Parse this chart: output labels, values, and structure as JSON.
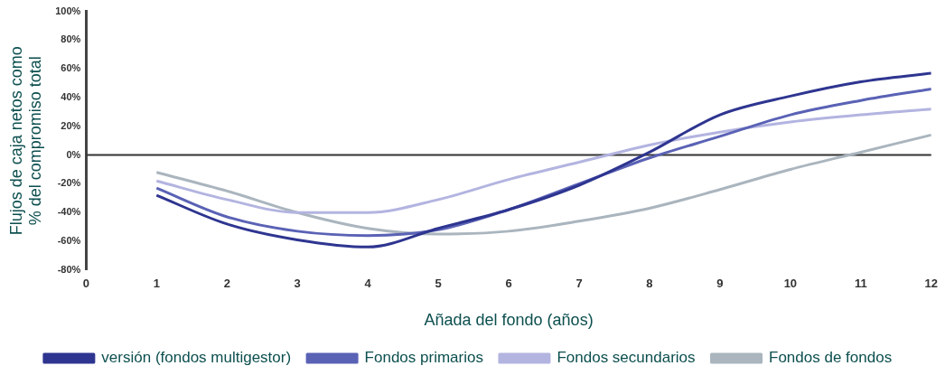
{
  "chart_data": {
    "type": "line",
    "xlabel": "Añada del fondo (años)",
    "ylabel": "Flujos de caja netos como\n% del compromiso total",
    "x": [
      1,
      2,
      3,
      4,
      5,
      6,
      7,
      8,
      9,
      10,
      11,
      12
    ],
    "series": [
      {
        "name": "versión (fondos multigestor)",
        "color": "#2e3590",
        "values": [
          -28,
          -48,
          -59,
          -64,
          -51,
          -38,
          -21,
          2,
          28,
          41,
          51,
          57
        ]
      },
      {
        "name": "Fondos primarios",
        "color": "#5a62b5",
        "values": [
          -23,
          -43,
          -53,
          -56,
          -52,
          -38,
          -20,
          -2,
          13,
          28,
          38,
          46
        ]
      },
      {
        "name": "Fondos secundarios",
        "color": "#b3b4e0",
        "values": [
          -18,
          -31,
          -40,
          -40,
          -31,
          -17,
          -5,
          7,
          16,
          23,
          28,
          32
        ]
      },
      {
        "name": "Fondos de fondos",
        "color": "#aab5be",
        "values": [
          -12,
          -25,
          -40,
          -51,
          -55,
          -53,
          -46,
          -37,
          -24,
          -10,
          2,
          14
        ]
      }
    ],
    "xlim": [
      0,
      12
    ],
    "xticks": [
      0,
      1,
      2,
      3,
      4,
      5,
      6,
      7,
      8,
      9,
      10,
      11,
      12
    ],
    "ylim": [
      -80,
      100
    ],
    "yticks": [
      {
        "value": -80,
        "label": "-80%"
      },
      {
        "value": -60,
        "label": "-60%"
      },
      {
        "value": -40,
        "label": "-40%"
      },
      {
        "value": -20,
        "label": "-20%"
      },
      {
        "value": 0,
        "label": "0%"
      },
      {
        "value": 20,
        "label": "20%"
      },
      {
        "value": 40,
        "label": "40%"
      },
      {
        "value": 60,
        "label": "60%"
      },
      {
        "value": 80,
        "label": "80%"
      },
      {
        "value": 100,
        "label": "100%"
      }
    ],
    "ref_lines": [
      {
        "axis": "y",
        "value": 0,
        "color": "#333333"
      }
    ],
    "grid": false,
    "legend": "bottom",
    "marker": "none",
    "line_style": "solid"
  }
}
